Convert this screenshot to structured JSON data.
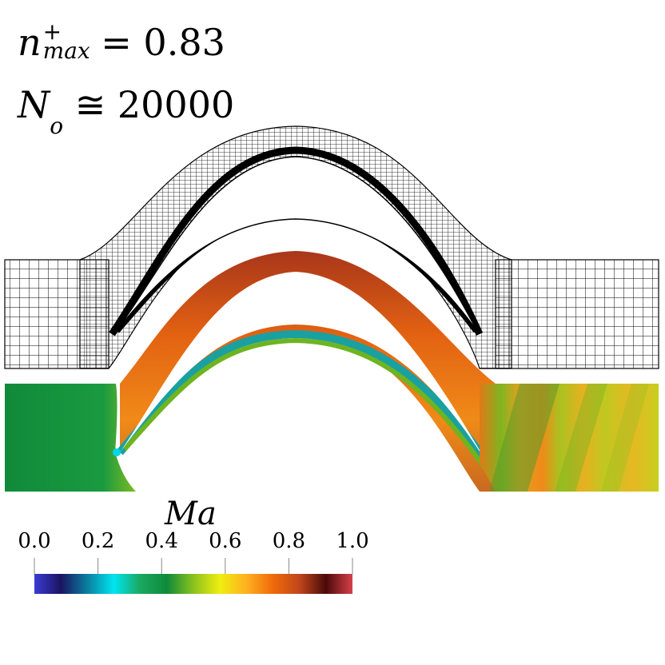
{
  "annotations": {
    "n_symbol": "n",
    "n_sup": "+",
    "n_sub": "max",
    "n_value": "= 0.83",
    "N_symbol": "N",
    "N_sub": "o",
    "N_value": "≅ 20000"
  },
  "colorbar": {
    "title": "Ma",
    "ticks": [
      "0.0",
      "0.2",
      "0.4",
      "0.6",
      "0.8",
      "1.0"
    ],
    "stops": [
      "#3b3bd6",
      "#1a1460",
      "#0a7fa0",
      "#00e5f0",
      "#1aa860",
      "#0f8a3a",
      "#8ac21e",
      "#f0ee10",
      "#ffb020",
      "#f06a0a",
      "#c0451a",
      "#4a0a0a",
      "#d8404a"
    ]
  }
}
